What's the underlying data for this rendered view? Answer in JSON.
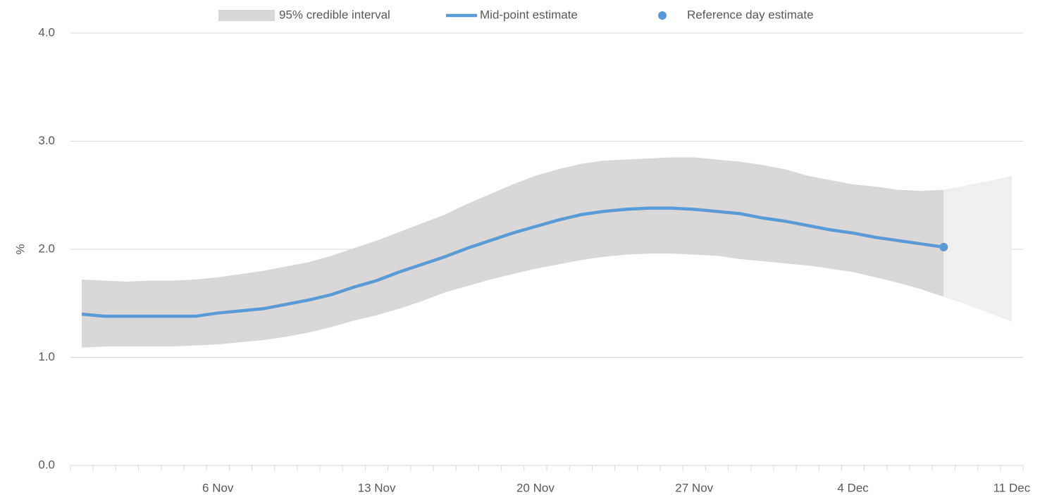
{
  "chart_data": {
    "type": "line",
    "y_label": "%",
    "categories": [
      null,
      null,
      null,
      null,
      null,
      null,
      "6 Nov",
      null,
      null,
      null,
      null,
      null,
      null,
      "13 Nov",
      null,
      null,
      null,
      null,
      null,
      null,
      "20 Nov",
      null,
      null,
      null,
      null,
      null,
      null,
      "27 Nov",
      null,
      null,
      null,
      null,
      null,
      null,
      "4 Dec",
      null,
      null,
      null,
      null,
      null,
      null,
      "11 Dec"
    ],
    "ylim": [
      0,
      4
    ],
    "yticks": [
      {
        "value": 0,
        "label": "0.0"
      },
      {
        "value": 1,
        "label": "1.0"
      },
      {
        "value": 2,
        "label": "2.0"
      },
      {
        "value": 3,
        "label": "3.0"
      },
      {
        "value": 4,
        "label": "4.0"
      }
    ],
    "grid": true,
    "legend": "top",
    "series": [
      {
        "name": "95% credible interval",
        "type": "band",
        "color": "#d9d7d8",
        "upper": [
          1.72,
          1.71,
          1.7,
          1.71,
          1.71,
          1.72,
          1.74,
          1.77,
          1.8,
          1.84,
          1.88,
          1.94,
          2.01,
          2.08,
          2.16,
          2.24,
          2.32,
          2.42,
          2.51,
          2.6,
          2.68,
          2.74,
          2.79,
          2.82,
          2.83,
          2.84,
          2.85,
          2.85,
          2.83,
          2.81,
          2.78,
          2.74,
          2.68,
          2.64,
          2.6,
          2.58,
          2.55,
          2.54,
          2.55,
          null,
          null,
          null
        ],
        "lower": [
          1.09,
          1.1,
          1.1,
          1.1,
          1.1,
          1.11,
          1.12,
          1.14,
          1.16,
          1.19,
          1.23,
          1.28,
          1.34,
          1.39,
          1.45,
          1.52,
          1.6,
          1.66,
          1.72,
          1.77,
          1.82,
          1.86,
          1.9,
          1.93,
          1.95,
          1.96,
          1.96,
          1.95,
          1.94,
          1.91,
          1.89,
          1.87,
          1.85,
          1.82,
          1.79,
          1.74,
          1.69,
          1.63,
          1.56,
          null,
          null,
          null
        ]
      },
      {
        "type": "band",
        "color": "#efefef",
        "upper": [
          null,
          null,
          null,
          null,
          null,
          null,
          null,
          null,
          null,
          null,
          null,
          null,
          null,
          null,
          null,
          null,
          null,
          null,
          null,
          null,
          null,
          null,
          null,
          null,
          null,
          null,
          null,
          null,
          null,
          null,
          null,
          null,
          null,
          null,
          null,
          null,
          null,
          null,
          2.55,
          2.59,
          2.63,
          2.68
        ],
        "lower": [
          null,
          null,
          null,
          null,
          null,
          null,
          null,
          null,
          null,
          null,
          null,
          null,
          null,
          null,
          null,
          null,
          null,
          null,
          null,
          null,
          null,
          null,
          null,
          null,
          null,
          null,
          null,
          null,
          null,
          null,
          null,
          null,
          null,
          null,
          null,
          null,
          null,
          null,
          1.56,
          1.49,
          1.41,
          1.33
        ]
      },
      {
        "name": "Mid-point estimate",
        "type": "line",
        "color": "#5b9bd5",
        "values": [
          1.4,
          1.38,
          1.38,
          1.38,
          1.38,
          1.38,
          1.41,
          1.43,
          1.45,
          1.49,
          1.53,
          1.58,
          1.65,
          1.71,
          1.79,
          1.86,
          1.93,
          2.01,
          2.08,
          2.15,
          2.21,
          2.27,
          2.32,
          2.35,
          2.37,
          2.38,
          2.38,
          2.37,
          2.35,
          2.33,
          2.29,
          2.26,
          2.22,
          2.18,
          2.15,
          2.11,
          2.08,
          2.05,
          2.02,
          null,
          null,
          null
        ]
      },
      {
        "name": "Reference day estimate",
        "type": "point",
        "color": "#5b9bd5",
        "values": [
          null,
          null,
          null,
          null,
          null,
          null,
          null,
          null,
          null,
          null,
          null,
          null,
          null,
          null,
          null,
          null,
          null,
          null,
          null,
          null,
          null,
          null,
          null,
          null,
          null,
          null,
          null,
          null,
          null,
          null,
          null,
          null,
          null,
          null,
          null,
          null,
          null,
          null,
          2.02,
          null,
          null,
          null
        ]
      }
    ]
  }
}
